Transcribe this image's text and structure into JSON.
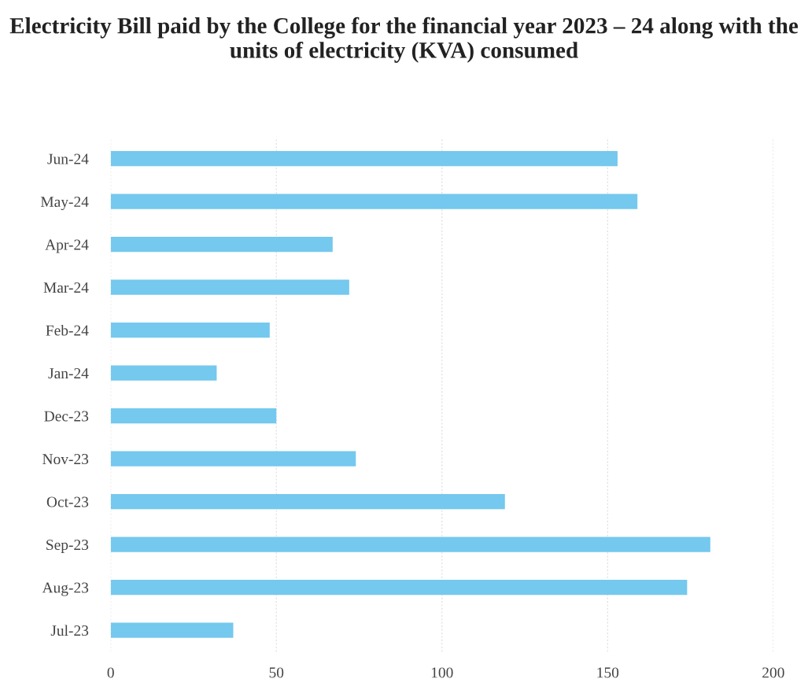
{
  "chart_data": {
    "type": "bar",
    "orientation": "horizontal",
    "title": "Electricity Bill paid by the College for the financial year 2023 – 24 along with the units of electricity (KVA) consumed",
    "categories": [
      "Jun-24",
      "May-24",
      "Apr-24",
      "Mar-24",
      "Feb-24",
      "Jan-24",
      "Dec-23",
      "Nov-23",
      "Oct-23",
      "Sep-23",
      "Aug-23",
      "Jul-23"
    ],
    "values": [
      153,
      159,
      67,
      72,
      48,
      32,
      50,
      74,
      119,
      181,
      174,
      37
    ],
    "color": "#75c8ee",
    "xlim": [
      0,
      200
    ],
    "xticks": [
      0,
      50,
      100,
      150,
      200
    ],
    "grid": "x"
  }
}
